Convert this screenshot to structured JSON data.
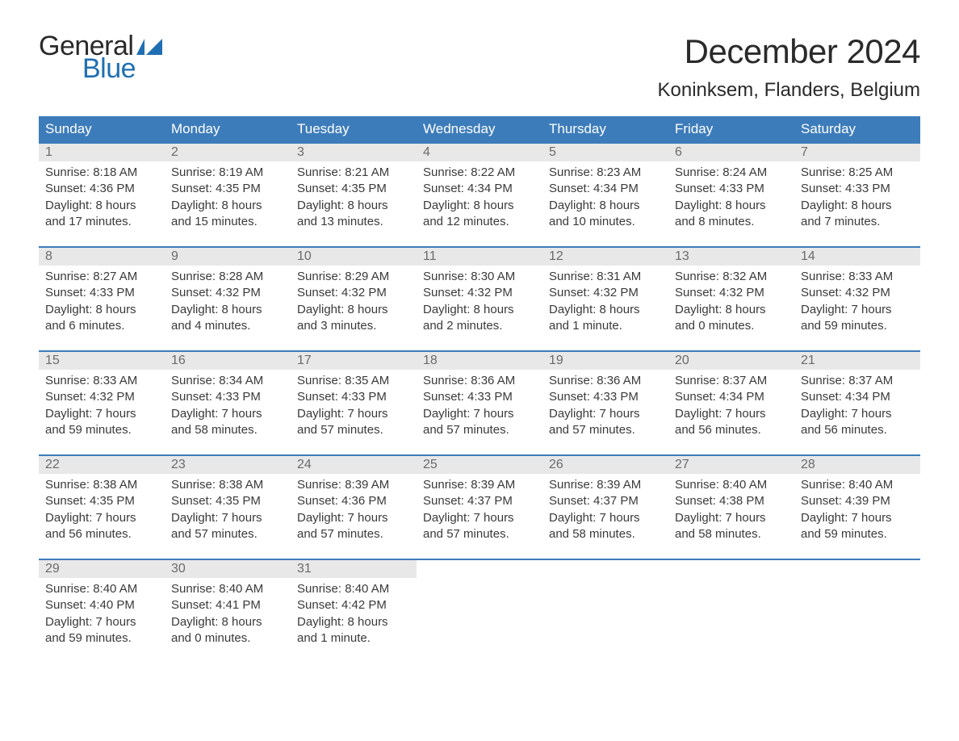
{
  "logo": {
    "text_general": "General",
    "text_blue": "Blue",
    "flag_color": "#1f6fb2"
  },
  "title": "December 2024",
  "location": "Koninksem, Flanders, Belgium",
  "colors": {
    "header_bg": "#3d7cba",
    "header_text": "#ffffff",
    "daynum_bg": "#e8e8e8",
    "daynum_text": "#6b6b6b",
    "body_text": "#3a3a3a",
    "border": "#3d7cba",
    "logo_blue": "#1f6fb2",
    "logo_dark": "#2a2a2a",
    "background": "#ffffff"
  },
  "typography": {
    "title_fontsize": 42,
    "location_fontsize": 24,
    "header_fontsize": 17,
    "daynum_fontsize": 16,
    "info_fontsize": 15,
    "logo_fontsize": 34
  },
  "day_headers": [
    "Sunday",
    "Monday",
    "Tuesday",
    "Wednesday",
    "Thursday",
    "Friday",
    "Saturday"
  ],
  "weeks": [
    [
      {
        "num": "1",
        "sunrise": "Sunrise: 8:18 AM",
        "sunset": "Sunset: 4:36 PM",
        "dl1": "Daylight: 8 hours",
        "dl2": "and 17 minutes."
      },
      {
        "num": "2",
        "sunrise": "Sunrise: 8:19 AM",
        "sunset": "Sunset: 4:35 PM",
        "dl1": "Daylight: 8 hours",
        "dl2": "and 15 minutes."
      },
      {
        "num": "3",
        "sunrise": "Sunrise: 8:21 AM",
        "sunset": "Sunset: 4:35 PM",
        "dl1": "Daylight: 8 hours",
        "dl2": "and 13 minutes."
      },
      {
        "num": "4",
        "sunrise": "Sunrise: 8:22 AM",
        "sunset": "Sunset: 4:34 PM",
        "dl1": "Daylight: 8 hours",
        "dl2": "and 12 minutes."
      },
      {
        "num": "5",
        "sunrise": "Sunrise: 8:23 AM",
        "sunset": "Sunset: 4:34 PM",
        "dl1": "Daylight: 8 hours",
        "dl2": "and 10 minutes."
      },
      {
        "num": "6",
        "sunrise": "Sunrise: 8:24 AM",
        "sunset": "Sunset: 4:33 PM",
        "dl1": "Daylight: 8 hours",
        "dl2": "and 8 minutes."
      },
      {
        "num": "7",
        "sunrise": "Sunrise: 8:25 AM",
        "sunset": "Sunset: 4:33 PM",
        "dl1": "Daylight: 8 hours",
        "dl2": "and 7 minutes."
      }
    ],
    [
      {
        "num": "8",
        "sunrise": "Sunrise: 8:27 AM",
        "sunset": "Sunset: 4:33 PM",
        "dl1": "Daylight: 8 hours",
        "dl2": "and 6 minutes."
      },
      {
        "num": "9",
        "sunrise": "Sunrise: 8:28 AM",
        "sunset": "Sunset: 4:32 PM",
        "dl1": "Daylight: 8 hours",
        "dl2": "and 4 minutes."
      },
      {
        "num": "10",
        "sunrise": "Sunrise: 8:29 AM",
        "sunset": "Sunset: 4:32 PM",
        "dl1": "Daylight: 8 hours",
        "dl2": "and 3 minutes."
      },
      {
        "num": "11",
        "sunrise": "Sunrise: 8:30 AM",
        "sunset": "Sunset: 4:32 PM",
        "dl1": "Daylight: 8 hours",
        "dl2": "and 2 minutes."
      },
      {
        "num": "12",
        "sunrise": "Sunrise: 8:31 AM",
        "sunset": "Sunset: 4:32 PM",
        "dl1": "Daylight: 8 hours",
        "dl2": "and 1 minute."
      },
      {
        "num": "13",
        "sunrise": "Sunrise: 8:32 AM",
        "sunset": "Sunset: 4:32 PM",
        "dl1": "Daylight: 8 hours",
        "dl2": "and 0 minutes."
      },
      {
        "num": "14",
        "sunrise": "Sunrise: 8:33 AM",
        "sunset": "Sunset: 4:32 PM",
        "dl1": "Daylight: 7 hours",
        "dl2": "and 59 minutes."
      }
    ],
    [
      {
        "num": "15",
        "sunrise": "Sunrise: 8:33 AM",
        "sunset": "Sunset: 4:32 PM",
        "dl1": "Daylight: 7 hours",
        "dl2": "and 59 minutes."
      },
      {
        "num": "16",
        "sunrise": "Sunrise: 8:34 AM",
        "sunset": "Sunset: 4:33 PM",
        "dl1": "Daylight: 7 hours",
        "dl2": "and 58 minutes."
      },
      {
        "num": "17",
        "sunrise": "Sunrise: 8:35 AM",
        "sunset": "Sunset: 4:33 PM",
        "dl1": "Daylight: 7 hours",
        "dl2": "and 57 minutes."
      },
      {
        "num": "18",
        "sunrise": "Sunrise: 8:36 AM",
        "sunset": "Sunset: 4:33 PM",
        "dl1": "Daylight: 7 hours",
        "dl2": "and 57 minutes."
      },
      {
        "num": "19",
        "sunrise": "Sunrise: 8:36 AM",
        "sunset": "Sunset: 4:33 PM",
        "dl1": "Daylight: 7 hours",
        "dl2": "and 57 minutes."
      },
      {
        "num": "20",
        "sunrise": "Sunrise: 8:37 AM",
        "sunset": "Sunset: 4:34 PM",
        "dl1": "Daylight: 7 hours",
        "dl2": "and 56 minutes."
      },
      {
        "num": "21",
        "sunrise": "Sunrise: 8:37 AM",
        "sunset": "Sunset: 4:34 PM",
        "dl1": "Daylight: 7 hours",
        "dl2": "and 56 minutes."
      }
    ],
    [
      {
        "num": "22",
        "sunrise": "Sunrise: 8:38 AM",
        "sunset": "Sunset: 4:35 PM",
        "dl1": "Daylight: 7 hours",
        "dl2": "and 56 minutes."
      },
      {
        "num": "23",
        "sunrise": "Sunrise: 8:38 AM",
        "sunset": "Sunset: 4:35 PM",
        "dl1": "Daylight: 7 hours",
        "dl2": "and 57 minutes."
      },
      {
        "num": "24",
        "sunrise": "Sunrise: 8:39 AM",
        "sunset": "Sunset: 4:36 PM",
        "dl1": "Daylight: 7 hours",
        "dl2": "and 57 minutes."
      },
      {
        "num": "25",
        "sunrise": "Sunrise: 8:39 AM",
        "sunset": "Sunset: 4:37 PM",
        "dl1": "Daylight: 7 hours",
        "dl2": "and 57 minutes."
      },
      {
        "num": "26",
        "sunrise": "Sunrise: 8:39 AM",
        "sunset": "Sunset: 4:37 PM",
        "dl1": "Daylight: 7 hours",
        "dl2": "and 58 minutes."
      },
      {
        "num": "27",
        "sunrise": "Sunrise: 8:40 AM",
        "sunset": "Sunset: 4:38 PM",
        "dl1": "Daylight: 7 hours",
        "dl2": "and 58 minutes."
      },
      {
        "num": "28",
        "sunrise": "Sunrise: 8:40 AM",
        "sunset": "Sunset: 4:39 PM",
        "dl1": "Daylight: 7 hours",
        "dl2": "and 59 minutes."
      }
    ],
    [
      {
        "num": "29",
        "sunrise": "Sunrise: 8:40 AM",
        "sunset": "Sunset: 4:40 PM",
        "dl1": "Daylight: 7 hours",
        "dl2": "and 59 minutes."
      },
      {
        "num": "30",
        "sunrise": "Sunrise: 8:40 AM",
        "sunset": "Sunset: 4:41 PM",
        "dl1": "Daylight: 8 hours",
        "dl2": "and 0 minutes."
      },
      {
        "num": "31",
        "sunrise": "Sunrise: 8:40 AM",
        "sunset": "Sunset: 4:42 PM",
        "dl1": "Daylight: 8 hours",
        "dl2": "and 1 minute."
      },
      null,
      null,
      null,
      null
    ]
  ]
}
